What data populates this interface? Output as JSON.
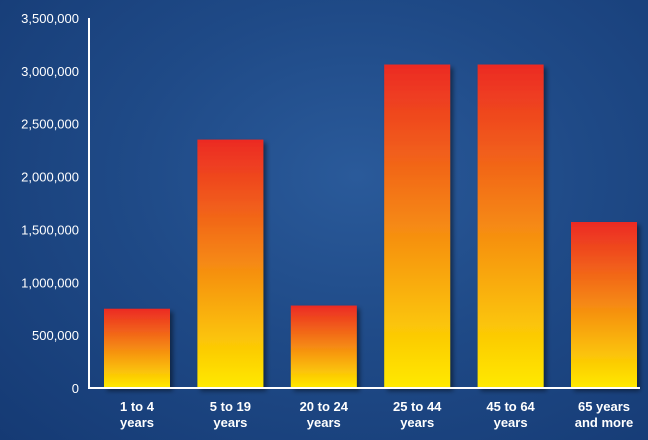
{
  "chart_data": {
    "type": "bar",
    "title": "",
    "xlabel": "",
    "ylabel": "",
    "categories": [
      [
        "1 to 4",
        "years"
      ],
      [
        "5 to 19",
        "years"
      ],
      [
        "20 to 24",
        "years"
      ],
      [
        "25 to 44",
        "years"
      ],
      [
        "45 to 64",
        "years"
      ],
      [
        "65 years",
        "and more"
      ]
    ],
    "values": [
      750000,
      2350000,
      780000,
      3060000,
      3060000,
      1570000
    ],
    "ylim": [
      0,
      3500000
    ],
    "yticks": [
      0,
      500000,
      1000000,
      1500000,
      2000000,
      2500000,
      3000000,
      3500000
    ],
    "ytick_labels": [
      "0",
      "500,000",
      "1,000,000",
      "1,500,000",
      "2,000,000",
      "2,500,000",
      "3,000,000",
      "3,500,000"
    ],
    "grid": false,
    "legend": "none",
    "colors": {
      "background": "#1f4a87",
      "bar_top": "#ec2a24",
      "bar_bottom": "#ffea00",
      "axis": "#ffffff",
      "text": "#ffffff"
    }
  }
}
